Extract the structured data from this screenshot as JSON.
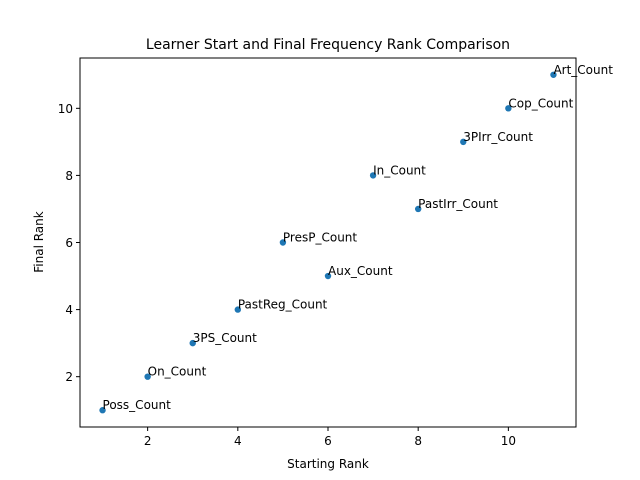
{
  "chart_data": {
    "type": "scatter",
    "title": "Learner Start and Final Frequency Rank Comparison",
    "xlabel": "Starting Rank",
    "ylabel": "Final Rank",
    "xlim": [
      0.5,
      11.5
    ],
    "ylim": [
      0.5,
      11.5
    ],
    "xticks": [
      2,
      4,
      6,
      8,
      10
    ],
    "yticks": [
      2,
      4,
      6,
      8,
      10
    ],
    "grid": false,
    "marker_color": "#1f77b4",
    "points": [
      {
        "label": "Poss_Count",
        "x": 1,
        "y": 1
      },
      {
        "label": "On_Count",
        "x": 2,
        "y": 2
      },
      {
        "label": "3PS_Count",
        "x": 3,
        "y": 3
      },
      {
        "label": "PastReg_Count",
        "x": 4,
        "y": 4
      },
      {
        "label": "PresP_Count",
        "x": 5,
        "y": 6
      },
      {
        "label": "Aux_Count",
        "x": 6,
        "y": 5
      },
      {
        "label": "In_Count",
        "x": 7,
        "y": 8
      },
      {
        "label": "PastIrr_Count",
        "x": 8,
        "y": 7
      },
      {
        "label": "3PIrr_Count",
        "x": 9,
        "y": 9
      },
      {
        "label": "Cop_Count",
        "x": 10,
        "y": 10
      },
      {
        "label": "Art_Count",
        "x": 11,
        "y": 11
      }
    ]
  }
}
